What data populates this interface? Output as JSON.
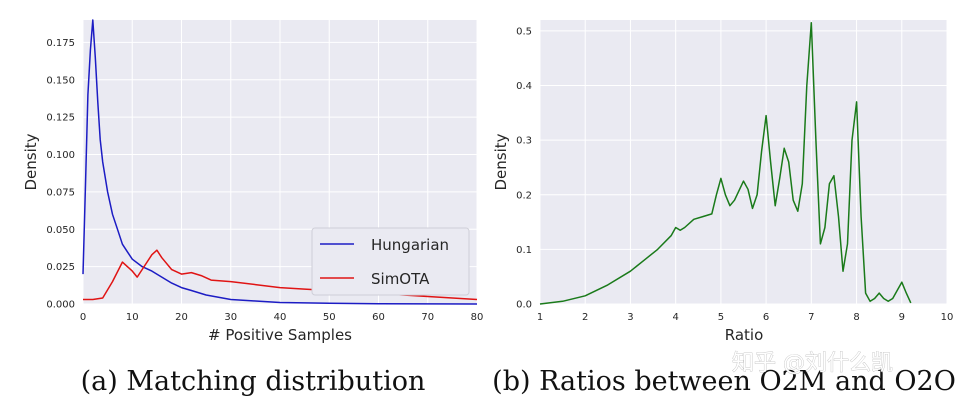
{
  "colors": {
    "panel_bg": "#eaeaf2",
    "grid": "#ffffff",
    "hungarian": "#1c1cc4",
    "simota": "#e01414",
    "ratio": "#1a7a1a"
  },
  "chart_data": [
    {
      "type": "line",
      "title": "",
      "caption": "(a) Matching distribution",
      "xlabel": "# Positive Samples",
      "ylabel": "Density",
      "xlim": [
        0,
        80
      ],
      "ylim": [
        0,
        0.19
      ],
      "x_ticks": [
        "0",
        "10",
        "20",
        "30",
        "40",
        "50",
        "60",
        "70",
        "80"
      ],
      "y_ticks": [
        "0.000",
        "0.025",
        "0.050",
        "0.075",
        "0.100",
        "0.125",
        "0.150",
        "0.175"
      ],
      "grid": true,
      "legend": {
        "placement": "lower-right",
        "entries": [
          "Hungarian",
          "SimOTA"
        ]
      },
      "series": [
        {
          "name": "Hungarian",
          "color": "#1c1cc4",
          "x": [
            0,
            0.5,
            1,
            1.5,
            2,
            2.5,
            3,
            3.5,
            4,
            5,
            6,
            7,
            8,
            9,
            10,
            12,
            14,
            16,
            18,
            20,
            22,
            25,
            30,
            35,
            40,
            50,
            60,
            70,
            80
          ],
          "y": [
            0.02,
            0.08,
            0.14,
            0.17,
            0.19,
            0.165,
            0.135,
            0.11,
            0.095,
            0.075,
            0.06,
            0.05,
            0.04,
            0.035,
            0.03,
            0.025,
            0.022,
            0.018,
            0.014,
            0.011,
            0.009,
            0.006,
            0.003,
            0.002,
            0.001,
            0.0005,
            0.0002,
            0.0001,
            0
          ]
        },
        {
          "name": "SimOTA",
          "color": "#e01414",
          "x": [
            0,
            2,
            4,
            6,
            8,
            10,
            11,
            12,
            14,
            15,
            16,
            18,
            20,
            22,
            24,
            26,
            30,
            35,
            40,
            45,
            50,
            55,
            60,
            65,
            70,
            75,
            80
          ],
          "y": [
            0.003,
            0.003,
            0.004,
            0.015,
            0.028,
            0.022,
            0.018,
            0.023,
            0.033,
            0.036,
            0.031,
            0.023,
            0.02,
            0.021,
            0.019,
            0.016,
            0.015,
            0.013,
            0.011,
            0.01,
            0.009,
            0.008,
            0.007,
            0.006,
            0.005,
            0.004,
            0.003
          ]
        }
      ]
    },
    {
      "type": "line",
      "title": "",
      "caption": "(b) Ratios between O2M and O2O",
      "xlabel": "Ratio",
      "ylabel": "Density",
      "xlim": [
        1,
        10
      ],
      "ylim": [
        0,
        0.52
      ],
      "x_ticks": [
        "1",
        "2",
        "3",
        "4",
        "5",
        "6",
        "7",
        "8",
        "9",
        "10"
      ],
      "y_ticks": [
        "0.0",
        "0.1",
        "0.2",
        "0.3",
        "0.4",
        "0.5"
      ],
      "grid": true,
      "series": [
        {
          "color": "#1a7a1a",
          "x": [
            1,
            1.5,
            2,
            2.5,
            3,
            3.3,
            3.6,
            3.9,
            4,
            4.1,
            4.2,
            4.4,
            4.6,
            4.8,
            4.9,
            5,
            5.1,
            5.2,
            5.3,
            5.5,
            5.6,
            5.7,
            5.8,
            5.9,
            6,
            6.1,
            6.2,
            6.3,
            6.4,
            6.5,
            6.6,
            6.7,
            6.8,
            6.9,
            7,
            7.1,
            7.2,
            7.3,
            7.4,
            7.5,
            7.6,
            7.7,
            7.8,
            7.9,
            8,
            8.1,
            8.2,
            8.3,
            8.4,
            8.5,
            8.6,
            8.7,
            8.8,
            8.9,
            9,
            9.1,
            9.2
          ],
          "y": [
            0,
            0.005,
            0.015,
            0.035,
            0.06,
            0.08,
            0.1,
            0.125,
            0.14,
            0.135,
            0.14,
            0.155,
            0.16,
            0.165,
            0.2,
            0.23,
            0.2,
            0.18,
            0.19,
            0.225,
            0.21,
            0.175,
            0.2,
            0.28,
            0.345,
            0.26,
            0.18,
            0.23,
            0.285,
            0.26,
            0.19,
            0.17,
            0.22,
            0.4,
            0.515,
            0.3,
            0.11,
            0.14,
            0.22,
            0.235,
            0.16,
            0.06,
            0.11,
            0.3,
            0.37,
            0.16,
            0.02,
            0.005,
            0.01,
            0.02,
            0.01,
            0.005,
            0.01,
            0.025,
            0.04,
            0.02,
            0.002
          ]
        }
      ]
    }
  ],
  "watermark": "知乎 @刘什么凯"
}
